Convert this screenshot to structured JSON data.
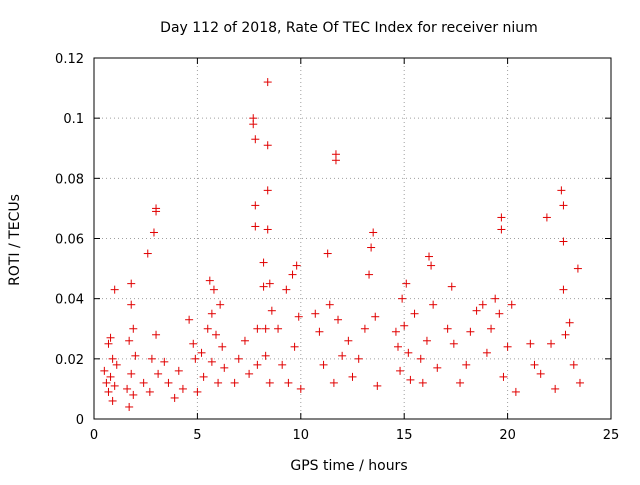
{
  "chart_data": {
    "type": "scatter",
    "title": "Day 112 of 2018, Rate Of TEC Index for receiver nium",
    "xlabel": "GPS time / hours",
    "ylabel": "ROTI / TECUs",
    "xlim": [
      0,
      25
    ],
    "ylim": [
      0,
      0.12
    ],
    "x_ticks": [
      0,
      5,
      10,
      15,
      20,
      25
    ],
    "y_ticks": [
      0,
      0.02,
      0.04,
      0.06,
      0.08,
      0.1,
      0.12
    ],
    "x_tick_labels": [
      "0",
      "5",
      "10",
      "15",
      "20",
      "25"
    ],
    "y_tick_labels": [
      "0",
      "0.02",
      "0.04",
      "0.06",
      "0.08",
      "0.1",
      "0.12"
    ],
    "grid": true,
    "marker": "+",
    "series": [
      {
        "name": "ROTI",
        "color": "#e00000",
        "points": [
          [
            0.5,
            0.016
          ],
          [
            0.6,
            0.012
          ],
          [
            0.7,
            0.025
          ],
          [
            0.7,
            0.009
          ],
          [
            0.8,
            0.027
          ],
          [
            0.8,
            0.014
          ],
          [
            0.9,
            0.02
          ],
          [
            0.9,
            0.006
          ],
          [
            1.0,
            0.043
          ],
          [
            1.0,
            0.011
          ],
          [
            1.1,
            0.018
          ],
          [
            1.6,
            0.01
          ],
          [
            1.7,
            0.026
          ],
          [
            1.7,
            0.004
          ],
          [
            1.8,
            0.038
          ],
          [
            1.8,
            0.045
          ],
          [
            1.8,
            0.015
          ],
          [
            1.9,
            0.03
          ],
          [
            1.9,
            0.008
          ],
          [
            2.0,
            0.021
          ],
          [
            2.4,
            0.012
          ],
          [
            2.6,
            0.055
          ],
          [
            2.7,
            0.009
          ],
          [
            2.8,
            0.02
          ],
          [
            2.9,
            0.062
          ],
          [
            3.0,
            0.07
          ],
          [
            3.0,
            0.069
          ],
          [
            3.0,
            0.028
          ],
          [
            3.1,
            0.015
          ],
          [
            3.4,
            0.019
          ],
          [
            3.6,
            0.012
          ],
          [
            3.9,
            0.007
          ],
          [
            4.1,
            0.016
          ],
          [
            4.3,
            0.01
          ],
          [
            4.6,
            0.033
          ],
          [
            4.8,
            0.025
          ],
          [
            4.9,
            0.02
          ],
          [
            5.0,
            0.009
          ],
          [
            5.2,
            0.022
          ],
          [
            5.3,
            0.014
          ],
          [
            5.5,
            0.03
          ],
          [
            5.6,
            0.046
          ],
          [
            5.7,
            0.035
          ],
          [
            5.7,
            0.019
          ],
          [
            5.8,
            0.043
          ],
          [
            5.9,
            0.028
          ],
          [
            6.0,
            0.012
          ],
          [
            6.1,
            0.038
          ],
          [
            6.2,
            0.024
          ],
          [
            6.3,
            0.017
          ],
          [
            6.8,
            0.012
          ],
          [
            7.0,
            0.02
          ],
          [
            7.3,
            0.026
          ],
          [
            7.5,
            0.015
          ],
          [
            7.7,
            0.1
          ],
          [
            7.7,
            0.098
          ],
          [
            7.8,
            0.093
          ],
          [
            7.8,
            0.071
          ],
          [
            7.8,
            0.064
          ],
          [
            7.9,
            0.03
          ],
          [
            7.9,
            0.018
          ],
          [
            8.2,
            0.052
          ],
          [
            8.2,
            0.044
          ],
          [
            8.3,
            0.03
          ],
          [
            8.3,
            0.021
          ],
          [
            8.4,
            0.112
          ],
          [
            8.4,
            0.091
          ],
          [
            8.4,
            0.076
          ],
          [
            8.4,
            0.063
          ],
          [
            8.5,
            0.045
          ],
          [
            8.5,
            0.012
          ],
          [
            8.6,
            0.036
          ],
          [
            8.9,
            0.03
          ],
          [
            9.1,
            0.018
          ],
          [
            9.3,
            0.043
          ],
          [
            9.4,
            0.012
          ],
          [
            9.6,
            0.048
          ],
          [
            9.7,
            0.024
          ],
          [
            9.8,
            0.051
          ],
          [
            9.9,
            0.034
          ],
          [
            10.0,
            0.01
          ],
          [
            10.7,
            0.035
          ],
          [
            10.9,
            0.029
          ],
          [
            11.1,
            0.018
          ],
          [
            11.3,
            0.055
          ],
          [
            11.4,
            0.038
          ],
          [
            11.6,
            0.012
          ],
          [
            11.7,
            0.088
          ],
          [
            11.7,
            0.086
          ],
          [
            11.8,
            0.033
          ],
          [
            12.0,
            0.021
          ],
          [
            12.3,
            0.026
          ],
          [
            12.5,
            0.014
          ],
          [
            12.8,
            0.02
          ],
          [
            13.1,
            0.03
          ],
          [
            13.3,
            0.048
          ],
          [
            13.4,
            0.057
          ],
          [
            13.5,
            0.062
          ],
          [
            13.6,
            0.034
          ],
          [
            13.7,
            0.011
          ],
          [
            14.6,
            0.029
          ],
          [
            14.7,
            0.024
          ],
          [
            14.8,
            0.016
          ],
          [
            14.9,
            0.04
          ],
          [
            15.0,
            0.031
          ],
          [
            15.1,
            0.045
          ],
          [
            15.2,
            0.022
          ],
          [
            15.3,
            0.013
          ],
          [
            15.5,
            0.035
          ],
          [
            15.8,
            0.02
          ],
          [
            15.9,
            0.012
          ],
          [
            16.1,
            0.026
          ],
          [
            16.2,
            0.054
          ],
          [
            16.3,
            0.051
          ],
          [
            16.4,
            0.038
          ],
          [
            16.6,
            0.017
          ],
          [
            17.1,
            0.03
          ],
          [
            17.3,
            0.044
          ],
          [
            17.4,
            0.025
          ],
          [
            17.7,
            0.012
          ],
          [
            18.0,
            0.018
          ],
          [
            18.2,
            0.029
          ],
          [
            18.5,
            0.036
          ],
          [
            18.8,
            0.038
          ],
          [
            19.0,
            0.022
          ],
          [
            19.2,
            0.03
          ],
          [
            19.4,
            0.04
          ],
          [
            19.6,
            0.035
          ],
          [
            19.7,
            0.067
          ],
          [
            19.7,
            0.063
          ],
          [
            19.8,
            0.014
          ],
          [
            20.0,
            0.024
          ],
          [
            20.2,
            0.038
          ],
          [
            20.4,
            0.009
          ],
          [
            21.1,
            0.025
          ],
          [
            21.3,
            0.018
          ],
          [
            21.6,
            0.015
          ],
          [
            21.9,
            0.067
          ],
          [
            22.1,
            0.025
          ],
          [
            22.3,
            0.01
          ],
          [
            22.6,
            0.076
          ],
          [
            22.7,
            0.071
          ],
          [
            22.7,
            0.059
          ],
          [
            22.7,
            0.043
          ],
          [
            22.8,
            0.028
          ],
          [
            23.0,
            0.032
          ],
          [
            23.2,
            0.018
          ],
          [
            23.4,
            0.05
          ],
          [
            23.5,
            0.012
          ]
        ]
      }
    ]
  }
}
